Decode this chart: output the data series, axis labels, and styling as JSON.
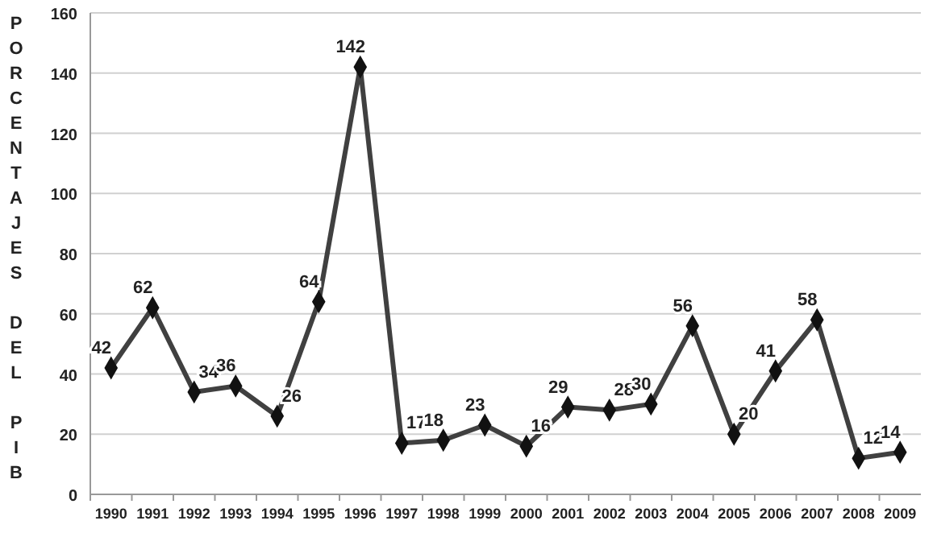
{
  "chart_data": {
    "type": "line",
    "ylabel": "PORCENTAJES DEL PIB",
    "categories": [
      "1990",
      "1991",
      "1992",
      "1993",
      "1994",
      "1995",
      "1996",
      "1997",
      "1998",
      "1999",
      "2000",
      "2001",
      "2002",
      "2003",
      "2004",
      "2005",
      "2006",
      "2007",
      "2008",
      "2009"
    ],
    "series": [
      {
        "color": "#404040",
        "values": [
          42,
          62,
          34,
          36,
          26,
          64,
          142,
          17,
          18,
          23,
          16,
          29,
          28,
          30,
          56,
          20,
          41,
          58,
          12,
          14
        ]
      }
    ],
    "ylim": [
      0,
      160
    ],
    "yticks": [
      0,
      20,
      40,
      60,
      80,
      100,
      120,
      140,
      160
    ],
    "grid": "y",
    "marker": "diamond",
    "data_labels": true
  }
}
